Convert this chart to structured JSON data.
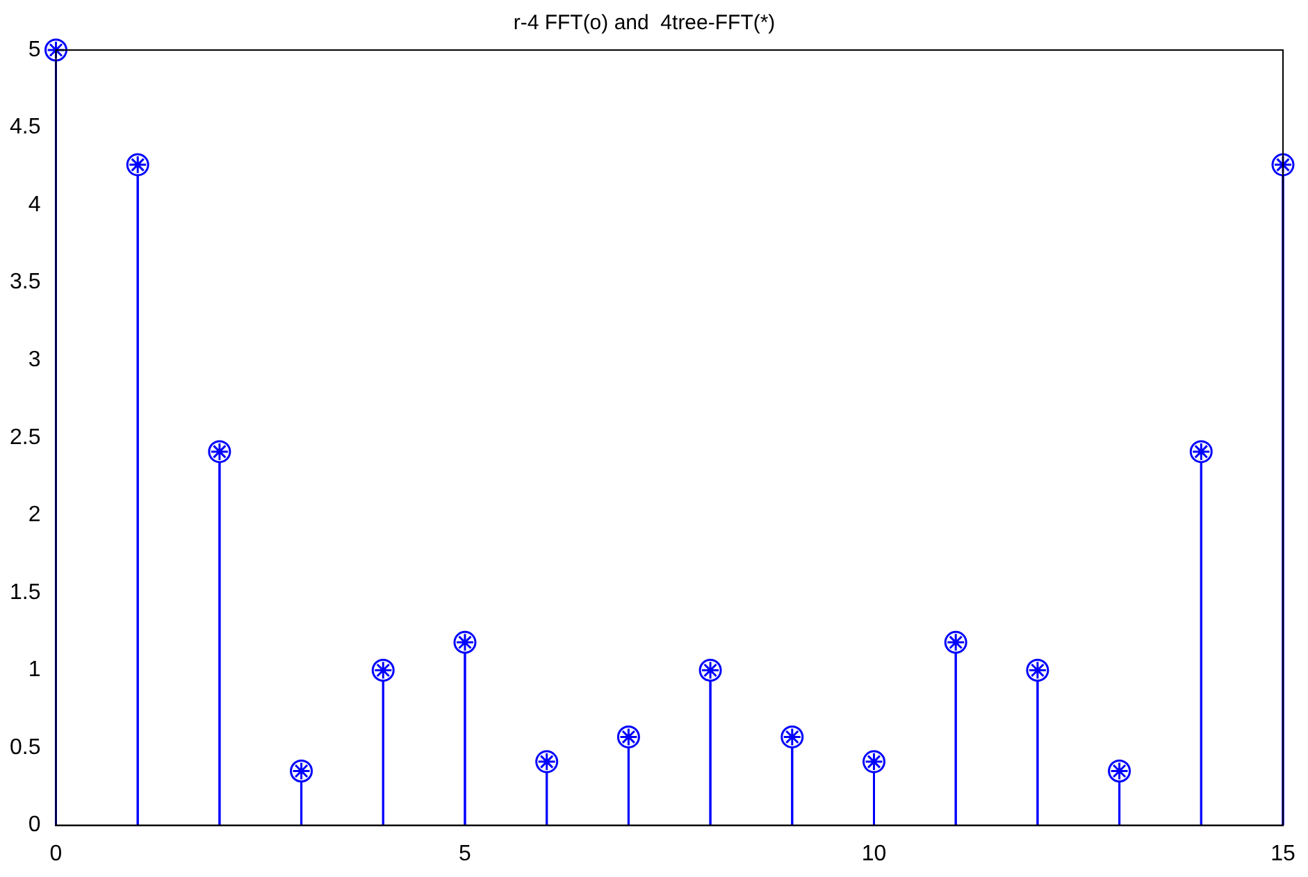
{
  "chart_data": {
    "type": "lollipop",
    "title": "r-4 FFT(o) and  4tree-FFT(*)",
    "x": [
      0,
      1,
      2,
      3,
      4,
      5,
      6,
      7,
      8,
      9,
      10,
      11,
      12,
      13,
      14,
      15
    ],
    "series": [
      {
        "color": "#0000ff",
        "marker": "circle",
        "values": [
          5,
          4.26,
          2.41,
          0.35,
          1,
          1.18,
          0.41,
          0.57,
          1,
          0.57,
          0.41,
          1.18,
          1,
          0.35,
          2.41,
          4.26
        ]
      },
      {
        "color": "#0000ff",
        "marker": "cross",
        "values": [
          5,
          4.26,
          2.41,
          0.35,
          1,
          1.18,
          0.41,
          0.57,
          1,
          0.57,
          0.41,
          1.18,
          1,
          0.35,
          2.41,
          4.26
        ]
      }
    ],
    "xlim": [
      0,
      15
    ],
    "xticks": [
      0,
      5,
      10,
      15
    ],
    "ylim": [
      0,
      5
    ],
    "yticks": [
      0,
      0.5,
      1,
      1.5,
      2,
      2.5,
      3,
      3.5,
      4,
      4.5,
      5
    ],
    "grid": false,
    "legend": false
  }
}
